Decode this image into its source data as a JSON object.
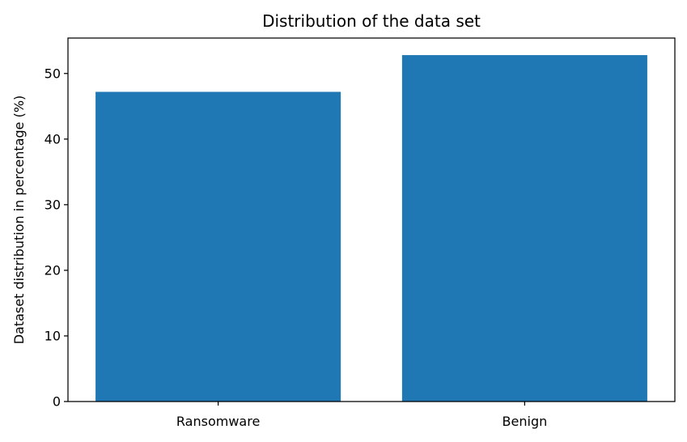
{
  "chart_data": {
    "type": "bar",
    "title": "Distribution of the data set",
    "xlabel": "",
    "ylabel": "Dataset distribution in percentage (%)",
    "categories": [
      "Ransomware",
      "Benign"
    ],
    "values": [
      47.2,
      52.8
    ],
    "ylim": [
      0,
      55.4
    ],
    "yticks": [
      0,
      10,
      20,
      30,
      40,
      50
    ],
    "grid": false,
    "legend": "none",
    "bar_color": "#1f77b4"
  }
}
